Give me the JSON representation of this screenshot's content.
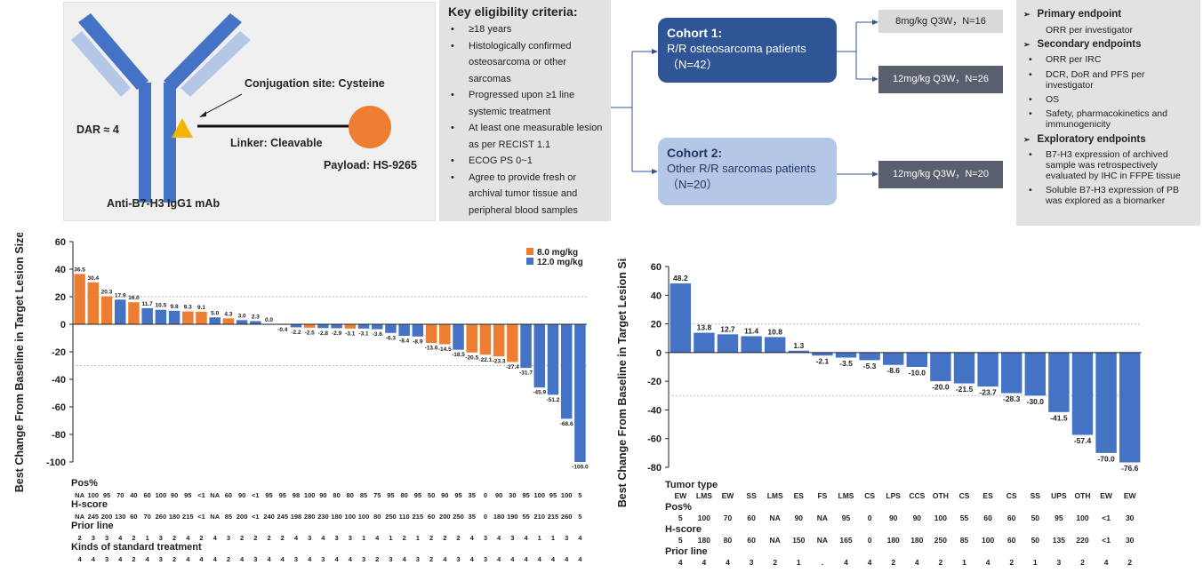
{
  "antibody": {
    "dar": "DAR ≈ 4",
    "conjugation": "Conjugation site: Cysteine",
    "linker": "Linker: Cleavable",
    "payload": "Payload: HS-9265",
    "mab": "Anti-B7-H3 IgG1 mAb",
    "colors": {
      "heavy": "#4472c4",
      "light": "#b4c7e7",
      "payload": "#ed7d31",
      "triangle": "#f4b400"
    }
  },
  "criteria": {
    "title": "Key eligibility criteria:",
    "items": [
      "≥18 years",
      "Histologically confirmed  osteosarcoma or other sarcomas",
      "Progressed upon ≥1 line systemic treatment",
      "At least one measurable lesion as per RECIST  1.1",
      "ECOG PS 0~1",
      "Agree to provide fresh or archival tumor tissue and peripheral blood samples"
    ]
  },
  "cohorts": [
    {
      "title": "Cohort 1:",
      "desc": "R/R osteosarcoma patients",
      "n": "（N=42）"
    },
    {
      "title": "Cohort 2:",
      "desc": "Other R/R sarcomas patients",
      "n": "（N=20）"
    }
  ],
  "doses": [
    "8mg/kg Q3W，N=16",
    "12mg/kg  Q3W，N=26",
    "12mg/kg  Q3W，N=20"
  ],
  "endpoints": {
    "primary_title": "Primary endpoint",
    "primary": [
      "ORR per investigator"
    ],
    "secondary_title": "Secondary endpoints",
    "secondary": [
      "ORR per IRC",
      "DCR, DoR and PFS per investigator",
      "OS",
      "Safety, pharmacokinetics  and immunogenicity"
    ],
    "exploratory_title": "Exploratory endpoints",
    "exploratory": [
      "B7-H3 expression of archived sample was retrospectively evaluated  by IHC in FFPE tissue",
      "Soluble B7-H3 expression of PB was explored  as a biomarker"
    ]
  },
  "chart_data": [
    {
      "type": "bar",
      "ylabel": "Best Change From Baseline in Target Lesion Size (%)",
      "ylim": [
        -100,
        60
      ],
      "yticks": [
        60,
        40,
        20,
        0,
        -20,
        -40,
        -60,
        -80,
        -100
      ],
      "reference_lines": [
        20,
        -30
      ],
      "legend": [
        {
          "name": "8.0 mg/kg",
          "color": "#ed7d31"
        },
        {
          "name": "12.0 mg/kg",
          "color": "#4472c4"
        }
      ],
      "legend_position": "top-right",
      "values": [
        36.5,
        30.4,
        20.3,
        17.9,
        16.0,
        11.7,
        10.5,
        9.8,
        9.3,
        9.1,
        5.0,
        4.3,
        3.0,
        2.3,
        0.0,
        -0.4,
        -2.2,
        -2.5,
        -2.8,
        -2.9,
        -3.1,
        -3.1,
        -3.6,
        -6.3,
        -8.4,
        -8.9,
        -13.6,
        -14.5,
        -18.5,
        -20.5,
        -22.1,
        -23.3,
        -27.4,
        -31.7,
        -45.9,
        -51.2,
        -68.6,
        -100.0
      ],
      "labels": [
        "36.5",
        "30.4",
        "20.3",
        "17.9",
        "16.0",
        "11.7",
        "10.5",
        "9.8",
        "9.3",
        "9.1",
        "5.0",
        "4.3",
        "3.0",
        "2.3",
        "0.0",
        "-0.4",
        "-2.2",
        "-2.5",
        "-2.8",
        "-2.9",
        "-3.1",
        "-3.1",
        "-3.6",
        "-6.3",
        "-8.4",
        "-8.9",
        "-13.6",
        "-14.5",
        "-18.5",
        "-20.5",
        "-22.1",
        "-23.3",
        "-27.4",
        "-31.7",
        "-45.9",
        "-51.2",
        "-68.6",
        "-100.0"
      ],
      "dose": [
        8,
        8,
        8,
        12,
        8,
        12,
        12,
        12,
        8,
        8,
        12,
        8,
        12,
        12,
        12,
        12,
        12,
        8,
        12,
        12,
        8,
        12,
        12,
        12,
        12,
        12,
        8,
        8,
        12,
        8,
        8,
        8,
        8,
        12,
        12,
        12,
        12,
        12
      ],
      "table": [
        {
          "title": "Pos%",
          "values": [
            "NA",
            "100",
            "95",
            "70",
            "40",
            "60",
            "100",
            "90",
            "95",
            "<1",
            "NA",
            "60",
            "90",
            "<1",
            "95",
            "95",
            "98",
            "100",
            "90",
            "80",
            "80",
            "85",
            "75",
            "95",
            "80",
            "95",
            "50",
            "90",
            "95",
            "35",
            "0",
            "90",
            "30",
            "95",
            "100",
            "95",
            "100",
            "5"
          ]
        },
        {
          "title": "H-score",
          "values": [
            "NA",
            "245",
            "200",
            "130",
            "60",
            "70",
            "260",
            "180",
            "215",
            "<1",
            "NA",
            "85",
            "200",
            "<1",
            "240",
            "245",
            "198",
            "280",
            "230",
            "180",
            "100",
            "100",
            "80",
            "250",
            "110",
            "215",
            "60",
            "200",
            "250",
            "35",
            "0",
            "180",
            "190",
            "55",
            "210",
            "215",
            "260",
            "5"
          ]
        },
        {
          "title": "Prior line",
          "values": [
            "2",
            "3",
            "3",
            "4",
            "2",
            "1",
            "3",
            "2",
            "4",
            "2",
            "4",
            "3",
            "2",
            "2",
            "2",
            "2",
            "4",
            "3",
            "4",
            "3",
            "3",
            "1",
            "4",
            "1",
            "2",
            "1",
            "2",
            "2",
            "2",
            "4",
            "3",
            "4",
            "3",
            "4",
            "1",
            "1",
            "3",
            "4"
          ]
        },
        {
          "title": "Kinds of standard treatment",
          "values": [
            "4",
            "4",
            "3",
            "4",
            "2",
            "4",
            "3",
            "2",
            "4",
            "4",
            "4",
            "2",
            "4",
            "3",
            "4",
            "4",
            "3",
            "4",
            "3",
            "4",
            "4",
            "3",
            "2",
            "3",
            "4",
            "3",
            "2",
            "4",
            "3",
            "4",
            "3",
            "4",
            "4",
            "4",
            "4",
            "4",
            "4",
            "4"
          ]
        }
      ]
    },
    {
      "type": "bar",
      "ylabel": "Best Change From Baseline in Target Lesion Size (%)",
      "ylim": [
        -80,
        60
      ],
      "yticks": [
        60,
        40,
        20,
        0,
        -20,
        -40,
        -60,
        -80
      ],
      "reference_lines": [
        20,
        -30
      ],
      "color": "#4472c4",
      "values": [
        48.2,
        13.8,
        12.7,
        11.4,
        10.8,
        1.3,
        -2.1,
        -3.5,
        -5.3,
        -8.6,
        -10.0,
        -20.0,
        -21.5,
        -23.7,
        -28.3,
        -30.0,
        -41.5,
        -57.4,
        -70.0,
        -76.6
      ],
      "labels": [
        "48.2",
        "13.8",
        "12.7",
        "11.4",
        "10.8",
        "1.3",
        "-2.1",
        "-3.5",
        "-5.3",
        "-8.6",
        "-10.0",
        "-20.0",
        "-21.5",
        "-23.7",
        "-28.3",
        "-30.0",
        "-41.5",
        "-57.4",
        "-70.0",
        "-76.6"
      ],
      "table": [
        {
          "title": "Tumor type",
          "values": [
            "EW",
            "LMS",
            "EW",
            "SS",
            "LMS",
            "ES",
            "FS",
            "LMS",
            "CS",
            "LPS",
            "CCS",
            "OTH",
            "CS",
            "ES",
            "CS",
            "SS",
            "UPS",
            "OTH",
            "EW",
            "EW"
          ]
        },
        {
          "title": "Pos%",
          "values": [
            "5",
            "100",
            "70",
            "60",
            "NA",
            "90",
            "NA",
            "95",
            "0",
            "90",
            "90",
            "100",
            "55",
            "60",
            "60",
            "50",
            "95",
            "100",
            "<1",
            "30"
          ]
        },
        {
          "title": "H-score",
          "values": [
            "5",
            "180",
            "80",
            "60",
            "NA",
            "150",
            "NA",
            "165",
            "0",
            "180",
            "180",
            "250",
            "85",
            "100",
            "60",
            "50",
            "135",
            "220",
            "<1",
            "30"
          ]
        },
        {
          "title": "Prior line",
          "values": [
            "4",
            "4",
            "4",
            "3",
            "2",
            "1",
            ".",
            "4",
            "4",
            "2",
            "4",
            "2",
            "1",
            "4",
            "2",
            "1",
            "3",
            "2",
            "4",
            "2"
          ]
        }
      ]
    }
  ]
}
